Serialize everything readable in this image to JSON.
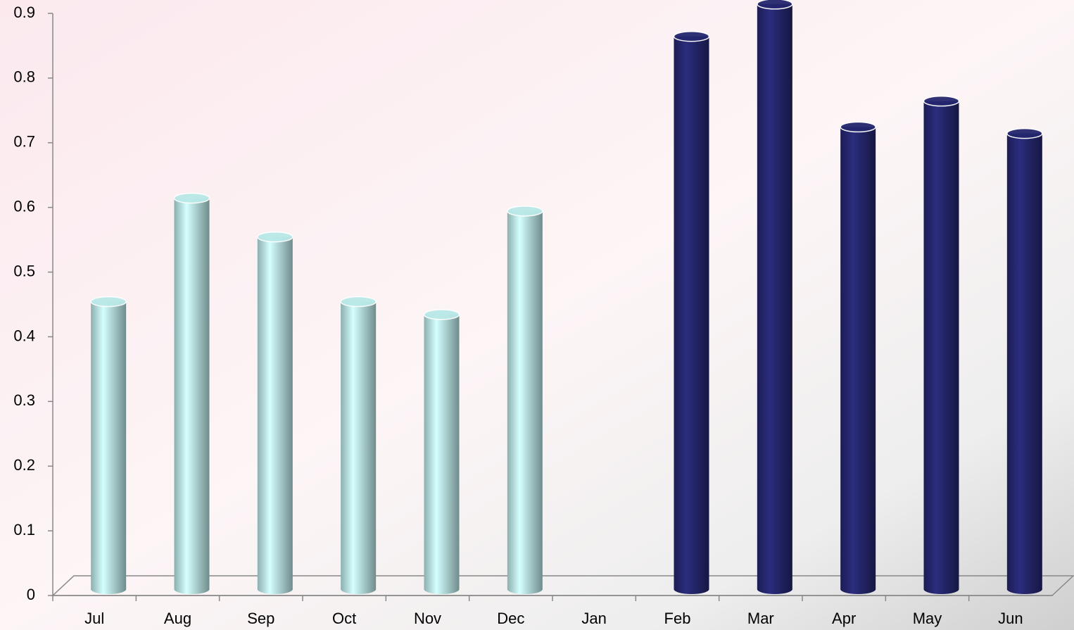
{
  "chart_data": {
    "type": "bar",
    "categories": [
      "Jul",
      "Aug",
      "Sep",
      "Oct",
      "Nov",
      "Dec",
      "Jan",
      "Feb",
      "Mar",
      "Apr",
      "May",
      "Jun"
    ],
    "values": [
      0.45,
      0.61,
      0.55,
      0.45,
      0.43,
      0.59,
      null,
      0.86,
      0.91,
      0.72,
      0.76,
      0.71
    ],
    "colors": [
      "#b9e9e8",
      "#b9e9e8",
      "#b9e9e8",
      "#b9e9e8",
      "#b9e9e8",
      "#b9e9e8",
      "#b9e9e8",
      "#25276e",
      "#25276e",
      "#25276e",
      "#25276e",
      "#25276e"
    ],
    "ylim": [
      0,
      0.9
    ],
    "yticks": [
      0,
      0.1,
      0.2,
      0.3,
      0.4,
      0.5,
      0.6,
      0.7,
      0.8,
      0.9
    ]
  }
}
